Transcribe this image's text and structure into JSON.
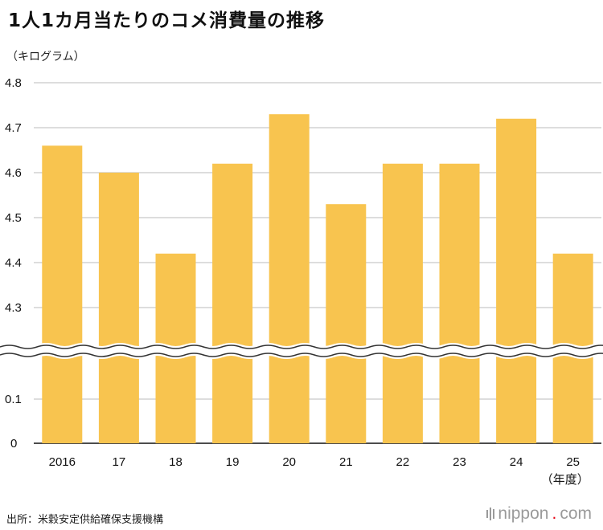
{
  "title": "1人1カ月当たりのコメ消費量の推移",
  "unit_label": "（キログラム）",
  "source": "出所：米穀安定供給確保支援機構",
  "brand": {
    "name": "nippon",
    "dot": ".",
    "tld": "com"
  },
  "colors": {
    "bar": "#F8C44F",
    "grid": "#bbbbbb",
    "axis": "#111111",
    "brand_dot": "#e60012"
  },
  "chart_data": {
    "type": "bar",
    "categories": [
      "2016",
      "17",
      "18",
      "19",
      "20",
      "21",
      "22",
      "23",
      "24",
      "25"
    ],
    "category_suffix": "（年度）",
    "values": [
      4.66,
      4.6,
      4.42,
      4.62,
      4.73,
      4.53,
      4.62,
      4.62,
      4.72,
      4.42
    ],
    "axis_break": true,
    "y_ticks_upper": [
      "4.3",
      "4.4",
      "4.5",
      "4.6",
      "4.7",
      "4.8"
    ],
    "y_ticks_lower": [
      "0",
      "0.1"
    ],
    "ylim_upper": [
      4.3,
      4.8
    ],
    "ylim_lower": [
      0,
      0.1
    ],
    "grid": true
  }
}
